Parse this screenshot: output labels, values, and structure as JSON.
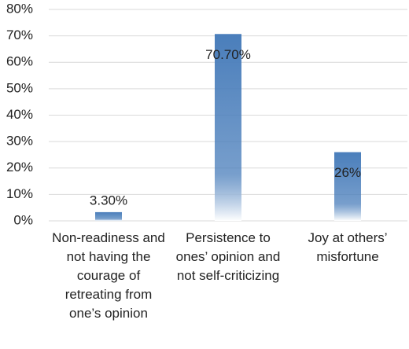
{
  "chart_data": {
    "type": "bar",
    "categories": [
      "Non-readiness and not having the courage of retreating from one’s opinion",
      "Persistence to ones’ opinion and not self-criticizing",
      "Joy at others’ misfortune"
    ],
    "values": [
      3.3,
      70.7,
      26
    ],
    "value_labels": [
      "3.30%",
      "70.70%",
      "26%"
    ],
    "color": "#4a7ebb",
    "ylim": [
      0,
      80
    ],
    "yticks": [
      {
        "value": 0,
        "label": "0%"
      },
      {
        "value": 10,
        "label": "10%"
      },
      {
        "value": 20,
        "label": "20%"
      },
      {
        "value": 30,
        "label": "30%"
      },
      {
        "value": 40,
        "label": "40%"
      },
      {
        "value": 50,
        "label": "50%"
      },
      {
        "value": 60,
        "label": "60%"
      },
      {
        "value": 70,
        "label": "70%"
      },
      {
        "value": 80,
        "label": "80%"
      }
    ],
    "grid": true
  }
}
